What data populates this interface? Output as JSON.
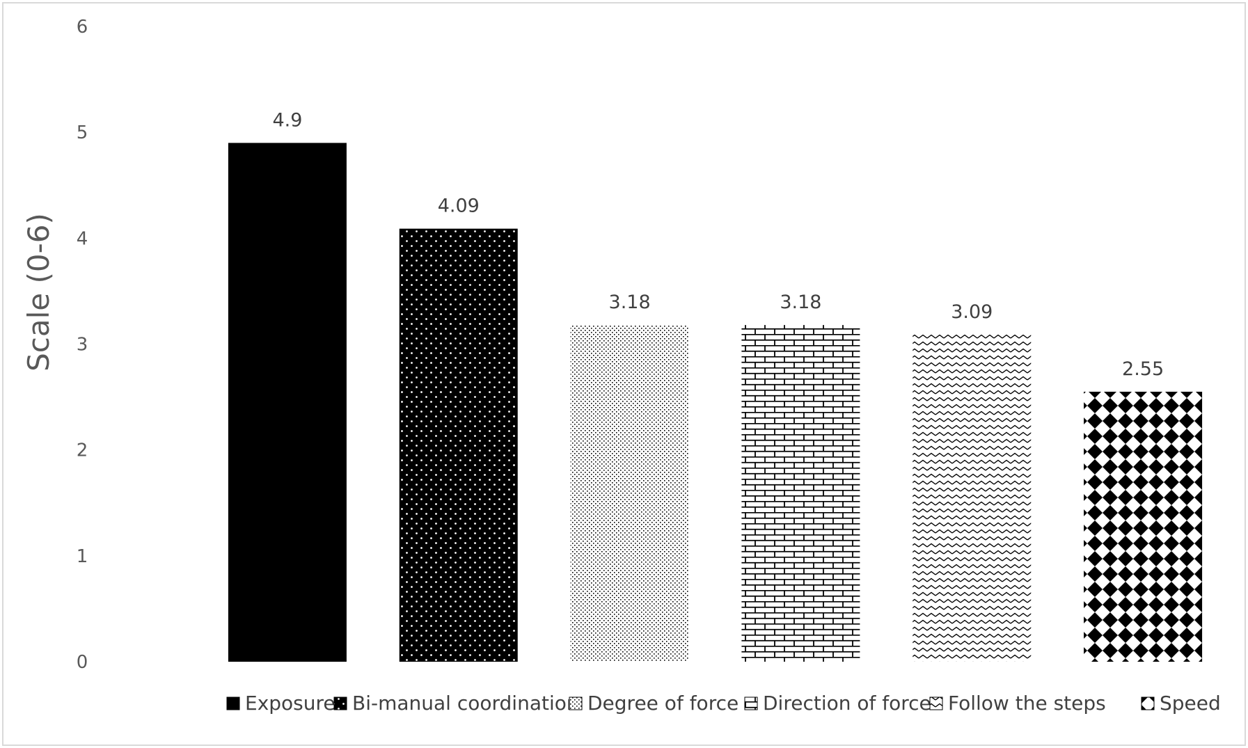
{
  "chart_data": {
    "type": "bar",
    "title": "",
    "xlabel": "",
    "ylabel": "Scale (0-6)",
    "ylim": [
      0,
      6
    ],
    "yticks": [
      "0",
      "1",
      "2",
      "3",
      "4",
      "5",
      "6"
    ],
    "grid": false,
    "legend_position": "bottom",
    "categories": [
      "Exposure",
      "Bi-manual coordination",
      "Degree of force",
      "Direction of force",
      "Follow the steps",
      "Speed"
    ],
    "values": [
      4.9,
      4.09,
      3.18,
      3.18,
      3.09,
      2.55
    ],
    "data_labels": [
      "4.9",
      "4.09",
      "3.18",
      "3.18",
      "3.09",
      "2.55"
    ],
    "series": [
      {
        "name": "Exposure",
        "value": 4.9,
        "fill": "solid-black"
      },
      {
        "name": "Bi-manual coordination",
        "value": 4.09,
        "fill": "black-with-white-dots"
      },
      {
        "name": "Degree of force",
        "value": 3.18,
        "fill": "fine-dots"
      },
      {
        "name": "Direction of force",
        "value": 3.18,
        "fill": "brick"
      },
      {
        "name": "Follow the steps",
        "value": 3.09,
        "fill": "zigzag"
      },
      {
        "name": "Speed",
        "value": 2.55,
        "fill": "diamond-checker"
      }
    ],
    "colors": {
      "ink": "#000000",
      "axis_text": "#595959",
      "label_text": "#404040",
      "frame": "#d9d9d9"
    }
  }
}
